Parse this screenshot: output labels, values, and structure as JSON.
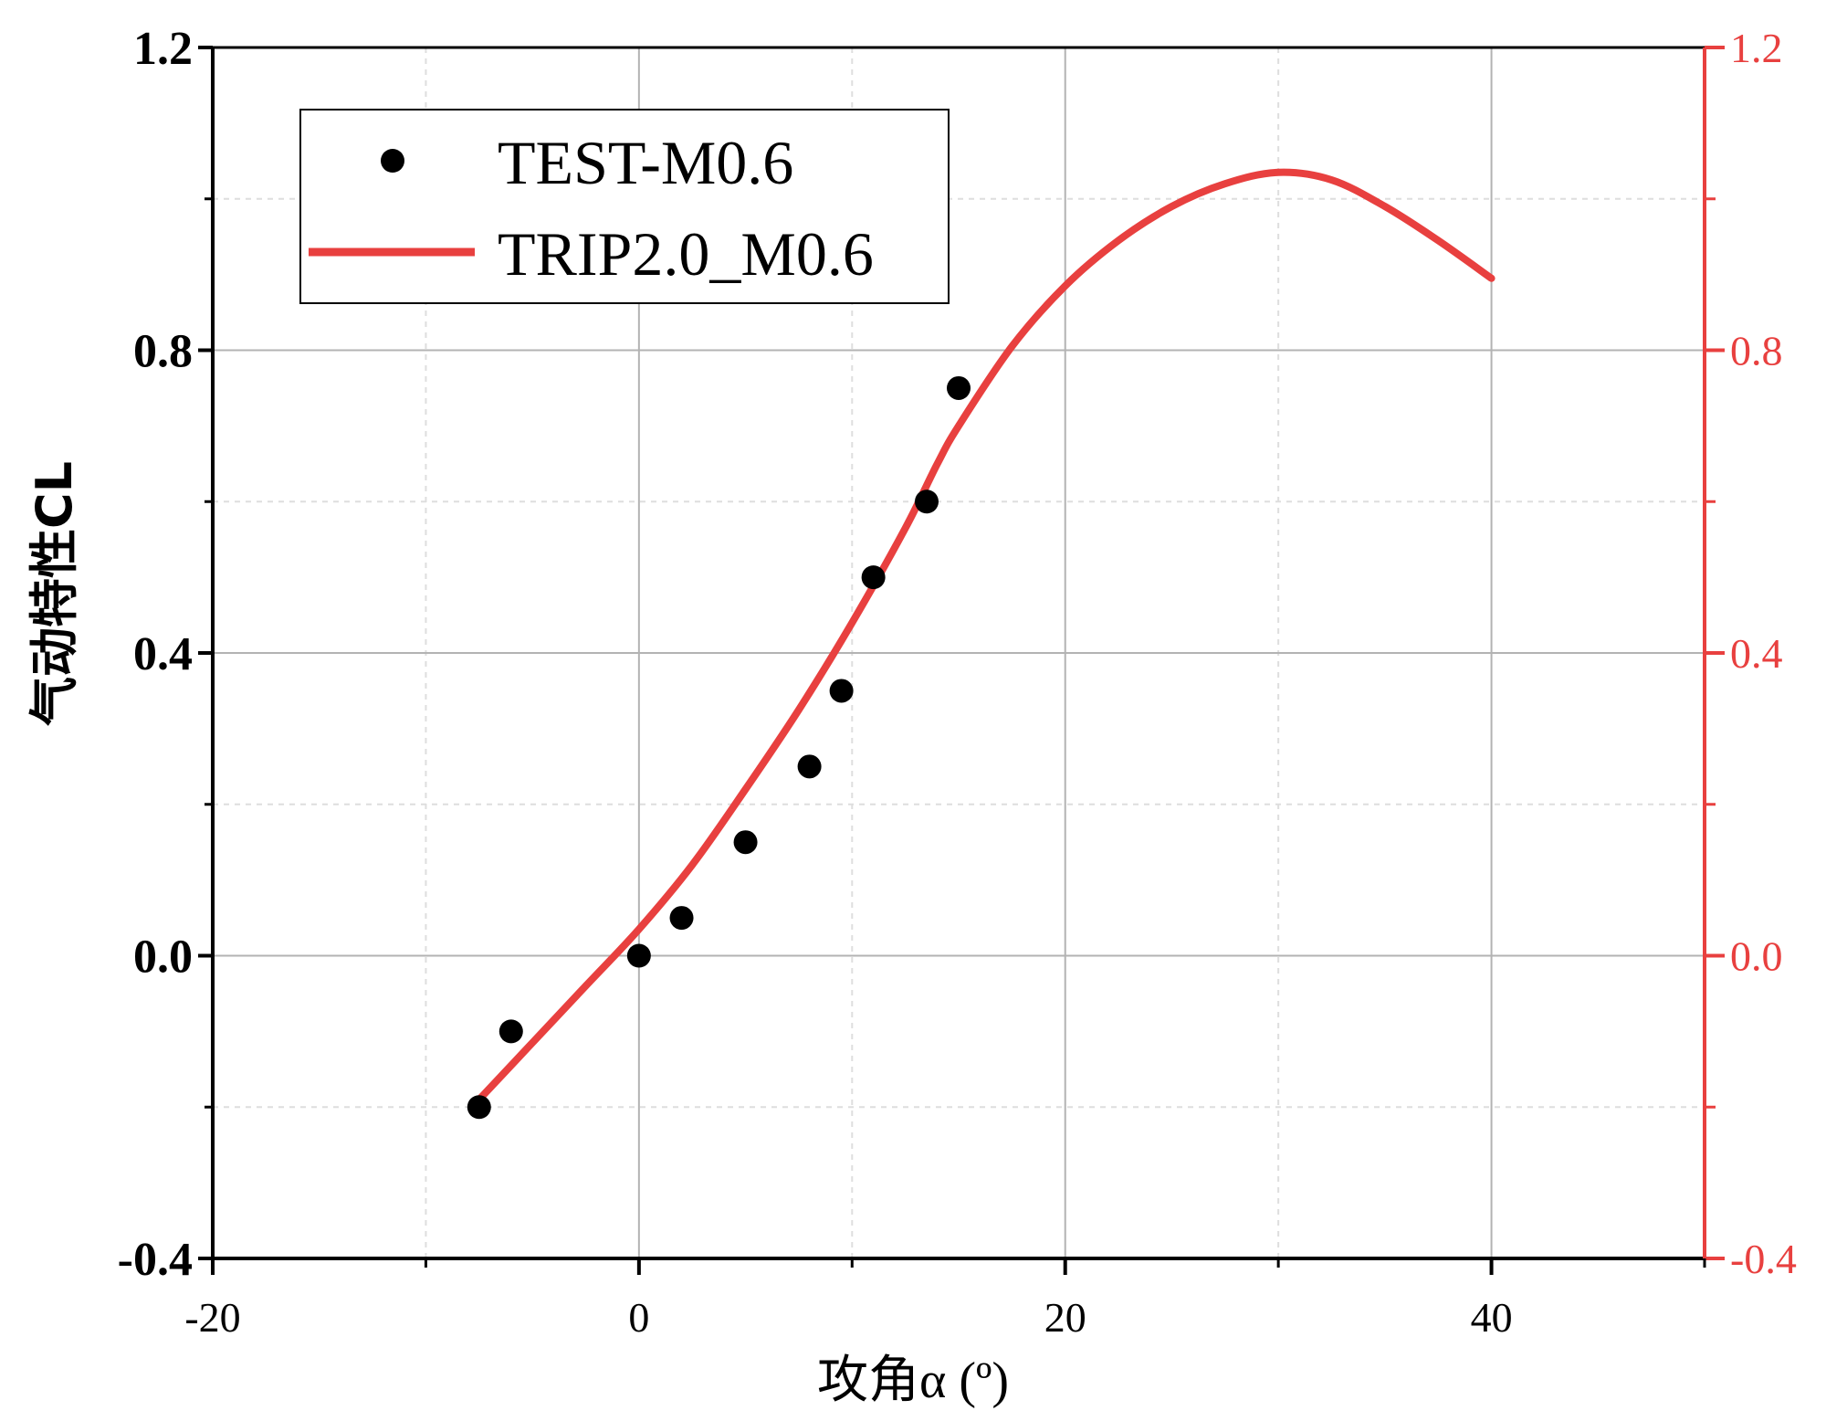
{
  "chart_data": {
    "type": "scatter",
    "title": "",
    "xlabel": "攻角α (º)",
    "ylabel": "气动特性CL",
    "xlim": [
      -20,
      50
    ],
    "ylim": [
      -0.4,
      1.2
    ],
    "y2lim": [
      -0.4,
      1.2
    ],
    "x_ticks": [
      -20,
      0,
      20,
      40
    ],
    "x_tick_labels": [
      "-20",
      "0",
      "20",
      "40"
    ],
    "y_ticks": [
      -0.4,
      0.0,
      0.4,
      0.8,
      1.2
    ],
    "y_tick_labels": [
      "-0.4",
      "0.0",
      "0.4",
      "0.8",
      "1.2"
    ],
    "y2_tick_labels": [
      "-0.4",
      "0.0",
      "0.4",
      "0.8",
      "1.2"
    ],
    "grid": true,
    "legend_position": "top-left",
    "series": [
      {
        "name": "TEST-M0.6",
        "kind": "scatter",
        "color": "#000000",
        "x": [
          -7.5,
          -6,
          0,
          2,
          5,
          8,
          9.5,
          11,
          13.5,
          15
        ],
        "y": [
          -0.2,
          -0.1,
          0.0,
          0.05,
          0.15,
          0.25,
          0.35,
          0.5,
          0.6,
          0.75
        ]
      },
      {
        "name": "TRIP2.0_M0.6",
        "kind": "line",
        "color": "#e8403f",
        "axis": "right",
        "x": [
          -7.5,
          -5,
          -2.5,
          0,
          2.5,
          5,
          7.5,
          10,
          12.5,
          14,
          15,
          17.5,
          20,
          22.5,
          25,
          27.5,
          30,
          32.5,
          35,
          37.5,
          40
        ],
        "y": [
          -0.19,
          -0.115,
          -0.04,
          0.035,
          0.12,
          0.22,
          0.325,
          0.44,
          0.565,
          0.65,
          0.7,
          0.805,
          0.885,
          0.945,
          0.99,
          1.02,
          1.035,
          1.025,
          0.99,
          0.945,
          0.895
        ]
      }
    ]
  }
}
